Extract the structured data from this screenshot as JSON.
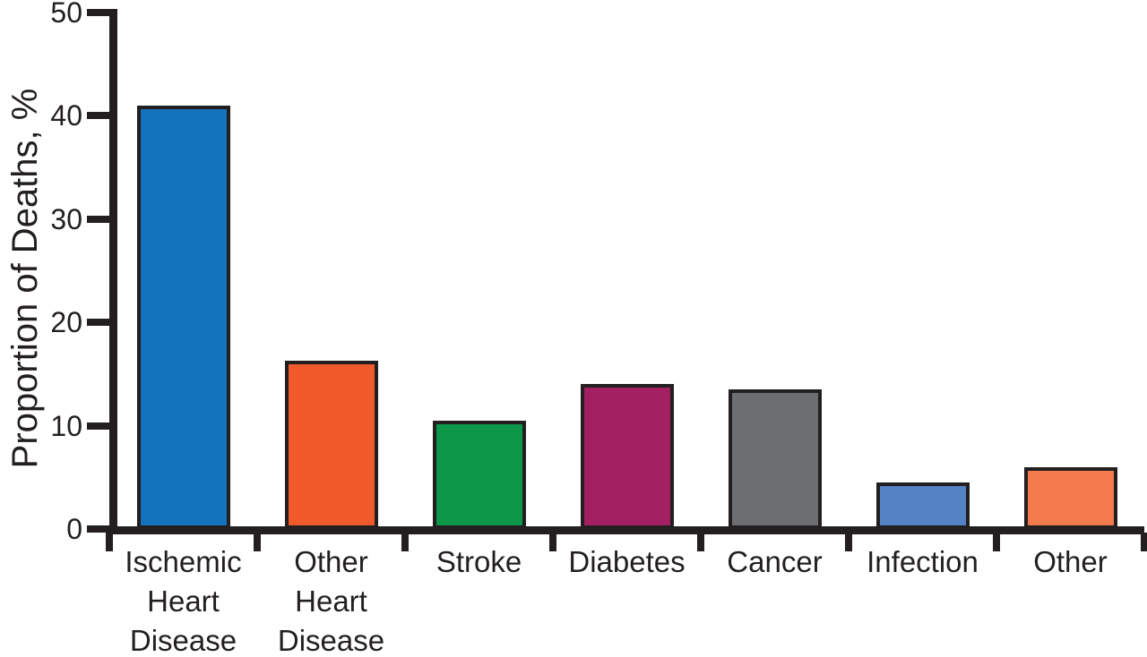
{
  "chart_data": {
    "type": "bar",
    "title": "",
    "xlabel": "",
    "ylabel": "Proportion of Deaths, %",
    "ylim": [
      0,
      50
    ],
    "yticks": [
      0,
      10,
      20,
      30,
      40,
      50
    ],
    "grid": false,
    "legend": "none",
    "categories": [
      "Ischemic Heart Disease",
      "Other Heart Disease",
      "Stroke",
      "Diabetes",
      "Cancer",
      "Infection",
      "Other"
    ],
    "category_lines": [
      [
        "Ischemic",
        "Heart",
        "Disease"
      ],
      [
        "Other",
        "Heart",
        "Disease"
      ],
      [
        "Stroke"
      ],
      [
        "Diabetes"
      ],
      [
        "Cancer"
      ],
      [
        "Infection"
      ],
      [
        "Other"
      ]
    ],
    "values": [
      41,
      16.3,
      10.5,
      14,
      13.5,
      4.5,
      6
    ],
    "bar_colors": [
      "#1373BC",
      "#F15B2B",
      "#0C9648",
      "#A21F61",
      "#6D6E71",
      "#5383C4",
      "#F47B4B"
    ],
    "bar_border_color": "#231F20",
    "axis_color": "#231F20",
    "background_color": "#FFFFFF"
  }
}
